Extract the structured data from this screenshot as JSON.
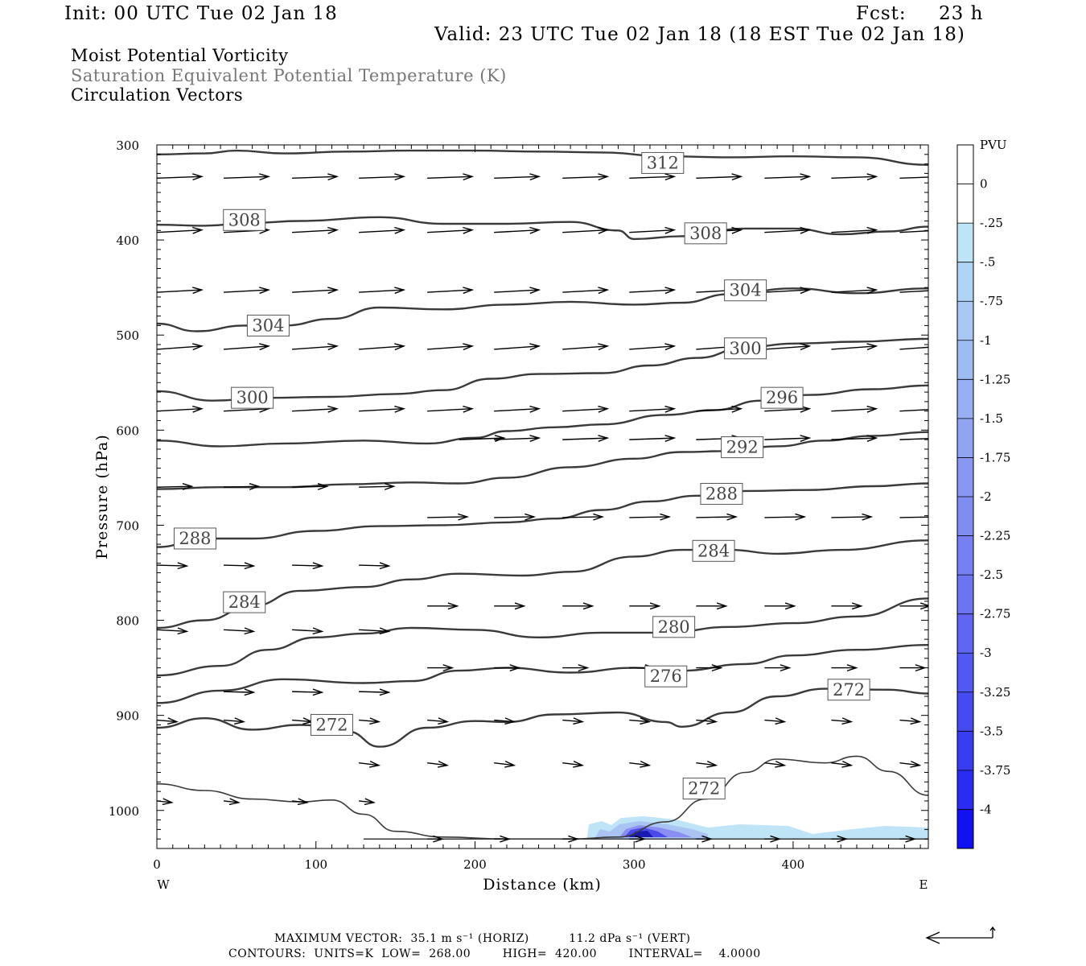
{
  "header": {
    "init": "Init: 00 UTC Tue 02 Jan 18",
    "fcst_label": "Fcst:",
    "fcst_value": "23 h",
    "valid": "Valid: 23 UTC Tue 02 Jan 18 (18 EST Tue 02 Jan 18)"
  },
  "fields": {
    "line1": "Moist Potential Vorticity",
    "line2": "Saturation Equivalent Potential Temperature (K)",
    "line3": "Circulation Vectors"
  },
  "footer": {
    "max_vector": "MAXIMUM VECTOR:  35.1 m s⁻¹ (HORIZ)          11.2 dPa s⁻¹ (VERT)",
    "contours": "CONTOURS:  UNITS=K  LOW=  268.00        HIGH=  420.00        INTERVAL=    4.0000"
  },
  "colors": {
    "contour": "#3a3a3a",
    "vector": "#000000",
    "pv_light": "#bfe3f7",
    "pv_dark": "#1a1ab0"
  },
  "chart_data": {
    "type": "line",
    "title": "Moist Potential Vorticity",
    "xlabel": "Distance (km)",
    "ylabel": "Pressure (hPa)",
    "xlim": [
      0,
      485
    ],
    "ylim": [
      1040,
      300
    ],
    "y_scale": "linear",
    "x_ticks": [
      0,
      100,
      200,
      300,
      400
    ],
    "y_ticks": [
      300,
      400,
      500,
      600,
      700,
      800,
      900,
      1000
    ],
    "x_side_labels": {
      "left": "W",
      "right": "E"
    },
    "contour_units": "K",
    "contours": [
      {
        "value": 312,
        "points": [
          [
            0,
            310
          ],
          [
            30,
            309
          ],
          [
            50,
            306
          ],
          [
            80,
            309
          ],
          [
            120,
            307
          ],
          [
            160,
            306
          ],
          [
            200,
            306
          ],
          [
            240,
            307
          ],
          [
            280,
            308
          ],
          [
            320,
            312
          ],
          [
            360,
            313
          ],
          [
            400,
            312
          ],
          [
            440,
            313
          ],
          [
            485,
            321
          ]
        ],
        "labels": [
          [
            318,
            319
          ]
        ]
      },
      {
        "value": 308,
        "points": [
          [
            0,
            384
          ],
          [
            30,
            385
          ],
          [
            60,
            382
          ],
          [
            90,
            380
          ],
          [
            140,
            376
          ],
          [
            180,
            383
          ],
          [
            220,
            383
          ],
          [
            260,
            381
          ],
          [
            290,
            390
          ],
          [
            300,
            399
          ],
          [
            330,
            396
          ],
          [
            370,
            388
          ],
          [
            400,
            388
          ],
          [
            430,
            394
          ],
          [
            460,
            391
          ],
          [
            485,
            386
          ]
        ],
        "labels": [
          [
            55,
            379
          ],
          [
            345,
            393
          ]
        ]
      },
      {
        "value": 304,
        "points": [
          [
            0,
            488
          ],
          [
            25,
            496
          ],
          [
            55,
            490
          ],
          [
            80,
            490
          ],
          [
            110,
            483
          ],
          [
            140,
            471
          ],
          [
            180,
            473
          ],
          [
            220,
            468
          ],
          [
            260,
            465
          ],
          [
            300,
            468
          ],
          [
            330,
            466
          ],
          [
            360,
            457
          ],
          [
            400,
            451
          ],
          [
            440,
            456
          ],
          [
            485,
            451
          ]
        ],
        "labels": [
          [
            70,
            490
          ],
          [
            370,
            453
          ]
        ]
      },
      {
        "value": 300,
        "points": [
          [
            0,
            559
          ],
          [
            35,
            569
          ],
          [
            70,
            566
          ],
          [
            110,
            565
          ],
          [
            150,
            562
          ],
          [
            180,
            558
          ],
          [
            210,
            546
          ],
          [
            240,
            541
          ],
          [
            280,
            540
          ],
          [
            310,
            532
          ],
          [
            340,
            524
          ],
          [
            370,
            513
          ],
          [
            400,
            509
          ],
          [
            440,
            507
          ],
          [
            485,
            504
          ]
        ],
        "labels": [
          [
            60,
            566
          ],
          [
            370,
            514
          ]
        ]
      },
      {
        "value": 296,
        "points": [
          [
            0,
            611
          ],
          [
            40,
            617
          ],
          [
            80,
            614
          ],
          [
            130,
            611
          ],
          [
            170,
            614
          ],
          [
            200,
            608
          ],
          [
            220,
            601
          ],
          [
            250,
            597
          ],
          [
            280,
            594
          ],
          [
            320,
            584
          ],
          [
            350,
            579
          ],
          [
            380,
            569
          ],
          [
            410,
            563
          ],
          [
            450,
            557
          ],
          [
            485,
            553
          ]
        ],
        "labels": [
          [
            393,
            566
          ]
        ]
      },
      {
        "value": 292,
        "points": [
          [
            0,
            662
          ],
          [
            40,
            660
          ],
          [
            80,
            660
          ],
          [
            120,
            657
          ],
          [
            160,
            655
          ],
          [
            190,
            656
          ],
          [
            220,
            650
          ],
          [
            260,
            639
          ],
          [
            300,
            630
          ],
          [
            330,
            623
          ],
          [
            360,
            622
          ],
          [
            390,
            617
          ],
          [
            420,
            611
          ],
          [
            450,
            606
          ],
          [
            485,
            602
          ]
        ],
        "labels": [
          [
            368,
            618
          ]
        ]
      },
      {
        "value": 288,
        "points": [
          [
            0,
            723
          ],
          [
            30,
            714
          ],
          [
            60,
            714
          ],
          [
            100,
            706
          ],
          [
            140,
            701
          ],
          [
            180,
            700
          ],
          [
            220,
            697
          ],
          [
            250,
            693
          ],
          [
            280,
            684
          ],
          [
            310,
            675
          ],
          [
            340,
            669
          ],
          [
            370,
            664
          ],
          [
            410,
            663
          ],
          [
            450,
            659
          ],
          [
            485,
            656
          ]
        ],
        "labels": [
          [
            24,
            714
          ],
          [
            355,
            667
          ]
        ]
      },
      {
        "value": 284,
        "points": [
          [
            0,
            808
          ],
          [
            30,
            800
          ],
          [
            60,
            785
          ],
          [
            90,
            769
          ],
          [
            130,
            765
          ],
          [
            160,
            757
          ],
          [
            190,
            751
          ],
          [
            230,
            753
          ],
          [
            260,
            749
          ],
          [
            300,
            733
          ],
          [
            330,
            726
          ],
          [
            360,
            726
          ],
          [
            390,
            730
          ],
          [
            430,
            726
          ],
          [
            485,
            716
          ]
        ],
        "labels": [
          [
            55,
            781
          ],
          [
            350,
            727
          ]
        ]
      },
      {
        "value": 280,
        "points": [
          [
            0,
            858
          ],
          [
            40,
            848
          ],
          [
            70,
            831
          ],
          [
            100,
            818
          ],
          [
            130,
            814
          ],
          [
            160,
            808
          ],
          [
            200,
            810
          ],
          [
            240,
            818
          ],
          [
            280,
            813
          ],
          [
            320,
            813
          ],
          [
            360,
            807
          ],
          [
            400,
            803
          ],
          [
            440,
            796
          ],
          [
            485,
            777
          ]
        ],
        "labels": [
          [
            325,
            807
          ]
        ]
      },
      {
        "value": 276,
        "points": [
          [
            0,
            887
          ],
          [
            40,
            874
          ],
          [
            80,
            862
          ],
          [
            130,
            866
          ],
          [
            160,
            864
          ],
          [
            190,
            853
          ],
          [
            220,
            850
          ],
          [
            260,
            855
          ],
          [
            300,
            850
          ],
          [
            330,
            853
          ],
          [
            370,
            846
          ],
          [
            400,
            837
          ],
          [
            440,
            831
          ],
          [
            485,
            826
          ]
        ],
        "labels": [
          [
            320,
            859
          ]
        ]
      },
      {
        "value": 272,
        "points": [
          [
            0,
            913
          ],
          [
            30,
            903
          ],
          [
            60,
            915
          ],
          [
            90,
            910
          ],
          [
            120,
            917
          ],
          [
            140,
            933
          ],
          [
            170,
            913
          ],
          [
            200,
            906
          ],
          [
            220,
            907
          ],
          [
            250,
            899
          ],
          [
            290,
            897
          ],
          [
            320,
            907
          ],
          [
            330,
            912
          ],
          [
            360,
            897
          ],
          [
            390,
            880
          ],
          [
            420,
            872
          ],
          [
            460,
            873
          ],
          [
            485,
            877
          ]
        ],
        "labels": [
          [
            110,
            910
          ],
          [
            435,
            873
          ]
        ]
      },
      {
        "value": 272,
        "points": [
          [
            0,
            972
          ],
          [
            30,
            979
          ],
          [
            60,
            988
          ],
          [
            90,
            991
          ],
          [
            110,
            989
          ],
          [
            130,
            1004
          ],
          [
            150,
            1022
          ],
          [
            180,
            1028
          ],
          [
            220,
            1030
          ],
          [
            260,
            1030
          ],
          [
            290,
            1028
          ],
          [
            320,
            1012
          ],
          [
            345,
            988
          ],
          [
            370,
            960
          ],
          [
            390,
            946
          ],
          [
            420,
            950
          ],
          [
            440,
            943
          ],
          [
            460,
            959
          ],
          [
            485,
            984
          ]
        ],
        "labels": [
          [
            344,
            977
          ]
        ]
      }
    ],
    "vectors": [
      {
        "z": 335,
        "x": [
          0,
          42,
          85,
          127,
          170,
          212,
          255,
          297,
          339,
          382,
          424,
          467
        ],
        "u": 0.9,
        "w": -2
      },
      {
        "z": 392,
        "x": [
          0,
          42,
          85,
          127,
          170,
          212,
          255,
          297,
          339,
          382,
          424,
          467
        ],
        "u": 0.9,
        "w": -3
      },
      {
        "z": 455,
        "x": [
          0,
          42,
          85,
          127,
          170,
          212,
          255,
          297,
          339,
          382,
          424,
          467
        ],
        "u": 0.9,
        "w": -3
      },
      {
        "z": 515,
        "x": [
          0,
          42,
          85,
          127,
          170,
          212,
          255,
          297,
          339,
          382,
          424,
          467
        ],
        "u": 0.9,
        "w": -4
      },
      {
        "z": 580,
        "x": [
          0,
          42,
          85,
          127,
          170,
          212,
          255,
          297,
          339,
          382,
          424,
          467
        ],
        "u": 0.9,
        "w": -3
      },
      {
        "z": 610,
        "x": [
          190,
          212,
          255,
          297,
          339,
          382,
          424,
          467
        ],
        "u": 0.9,
        "w": -2
      },
      {
        "z": 660,
        "x": [
          0,
          42,
          85,
          127
        ],
        "u": 0.7,
        "w": -1
      },
      {
        "z": 692,
        "x": [
          170,
          212,
          255,
          297,
          339,
          382,
          424,
          467
        ],
        "u": 0.8,
        "w": -1
      },
      {
        "z": 742,
        "x": [
          0,
          42,
          85,
          127
        ],
        "u": 0.6,
        "w": 1
      },
      {
        "z": 785,
        "x": [
          170,
          212,
          255,
          297,
          339,
          382,
          424,
          467
        ],
        "u": 0.6,
        "w": 0
      },
      {
        "z": 810,
        "x": [
          0,
          42,
          85,
          127
        ],
        "u": 0.6,
        "w": 2
      },
      {
        "z": 850,
        "x": [
          170,
          212,
          255,
          297,
          339,
          382,
          424,
          467
        ],
        "u": 0.5,
        "w": 0
      },
      {
        "z": 875,
        "x": [
          42,
          85,
          127
        ],
        "u": 0.6,
        "w": 1
      },
      {
        "z": 905,
        "x": [
          0,
          42,
          85,
          127,
          170,
          212,
          255,
          297,
          339,
          382,
          424,
          467
        ],
        "u": 0.4,
        "w": 2
      },
      {
        "z": 950,
        "x": [
          127,
          170,
          212,
          255,
          297,
          339,
          382,
          424,
          467
        ],
        "u": 0.4,
        "w": 3
      },
      {
        "z": 990,
        "x": [
          0,
          42,
          85,
          127
        ],
        "u": 0.3,
        "w": 2
      },
      {
        "z": 1030,
        "x": [
          170,
          212,
          255,
          297,
          339,
          382,
          424,
          467
        ],
        "u": 0.3,
        "w": 0
      }
    ],
    "pv_colorbar": {
      "label": "PVU",
      "tick_labels": [
        "0",
        "-.25",
        "-.5",
        "-.75",
        "-1",
        "-1.25",
        "-1.5",
        "-1.75",
        "-2",
        "-2.25",
        "-2.5",
        "-2.75",
        "-3",
        "-3.25",
        "-3.5",
        "-3.75",
        "-4"
      ],
      "colors": [
        "#ffffff",
        "#ffffff",
        "#bfe3f7",
        "#b0d4f5",
        "#a8c8f3",
        "#9fbcf2",
        "#98b0f2",
        "#90a4f2",
        "#8898f2",
        "#7f8cf2",
        "#7680f2",
        "#6c74f2",
        "#6066f2",
        "#5258f2",
        "#464af2",
        "#383cf2",
        "#2a2cf2",
        "#1010f0"
      ]
    }
  }
}
